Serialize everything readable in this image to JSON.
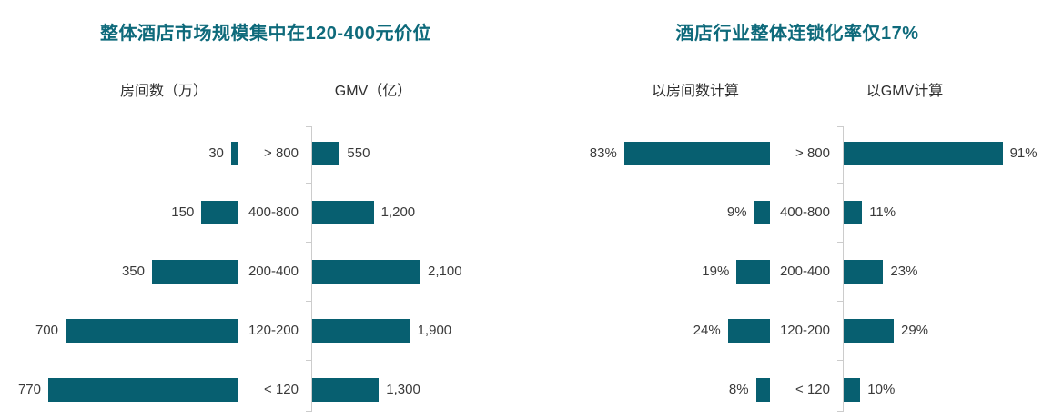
{
  "panels": [
    {
      "title": "整体酒店市场规模集中在120-400元价位",
      "sub_headers": [
        "房间数（万）",
        "GMV（亿）"
      ]
    },
    {
      "title": "酒店行业整体连锁化率仅17%",
      "sub_headers": [
        "以房间数计算",
        "以GMV计算"
      ]
    }
  ],
  "colors": {
    "bar": "#075f70",
    "title": "#0e6a7b",
    "axis": "#cccccc",
    "label": "#3a3a3a"
  },
  "chart_data": [
    {
      "type": "bar",
      "orientation": "horizontal",
      "panel_title": "整体酒店市场规模集中在120-400元价位",
      "title": "房间数（万）",
      "categories": [
        "> 800",
        "400-800",
        "200-400",
        "120-200",
        "< 120"
      ],
      "values": [
        30,
        150,
        350,
        700,
        770
      ],
      "value_labels": [
        "30",
        "150",
        "350",
        "700",
        "770"
      ],
      "bar_direction": "right-to-left",
      "value_label_position": "outside-left",
      "xlim": [
        0,
        770
      ],
      "grid": false,
      "axis_line": false
    },
    {
      "type": "bar",
      "orientation": "horizontal",
      "panel_title": "整体酒店市场规模集中在120-400元价位",
      "title": "GMV（亿）",
      "categories": [
        "> 800",
        "400-800",
        "200-400",
        "120-200",
        "< 120"
      ],
      "values": [
        550,
        1200,
        2100,
        1900,
        1300
      ],
      "value_labels": [
        "550",
        "1,200",
        "2,100",
        "1,900",
        "1,300"
      ],
      "bar_direction": "left-to-right",
      "value_label_position": "outside-right",
      "xlim": [
        0,
        2100
      ],
      "grid": false,
      "axis_line": true
    },
    {
      "type": "bar",
      "orientation": "horizontal",
      "panel_title": "酒店行业整体连锁化率仅17%",
      "title": "以房间数计算",
      "categories": [
        "> 800",
        "400-800",
        "200-400",
        "120-200",
        "< 120"
      ],
      "values": [
        83,
        9,
        19,
        24,
        8
      ],
      "value_labels": [
        "83%",
        "9%",
        "19%",
        "24%",
        "8%"
      ],
      "unit": "%",
      "bar_direction": "right-to-left",
      "value_label_position": "outside-left",
      "xlim": [
        0,
        100
      ],
      "grid": false,
      "axis_line": false
    },
    {
      "type": "bar",
      "orientation": "horizontal",
      "panel_title": "酒店行业整体连锁化率仅17%",
      "title": "以GMV计算",
      "categories": [
        "> 800",
        "400-800",
        "200-400",
        "120-200",
        "< 120"
      ],
      "values": [
        91,
        11,
        23,
        29,
        10
      ],
      "value_labels": [
        "91%",
        "11%",
        "23%",
        "29%",
        "10%"
      ],
      "unit": "%",
      "bar_direction": "left-to-right",
      "value_label_position": "outside-right",
      "xlim": [
        0,
        100
      ],
      "grid": false,
      "axis_line": true
    }
  ]
}
